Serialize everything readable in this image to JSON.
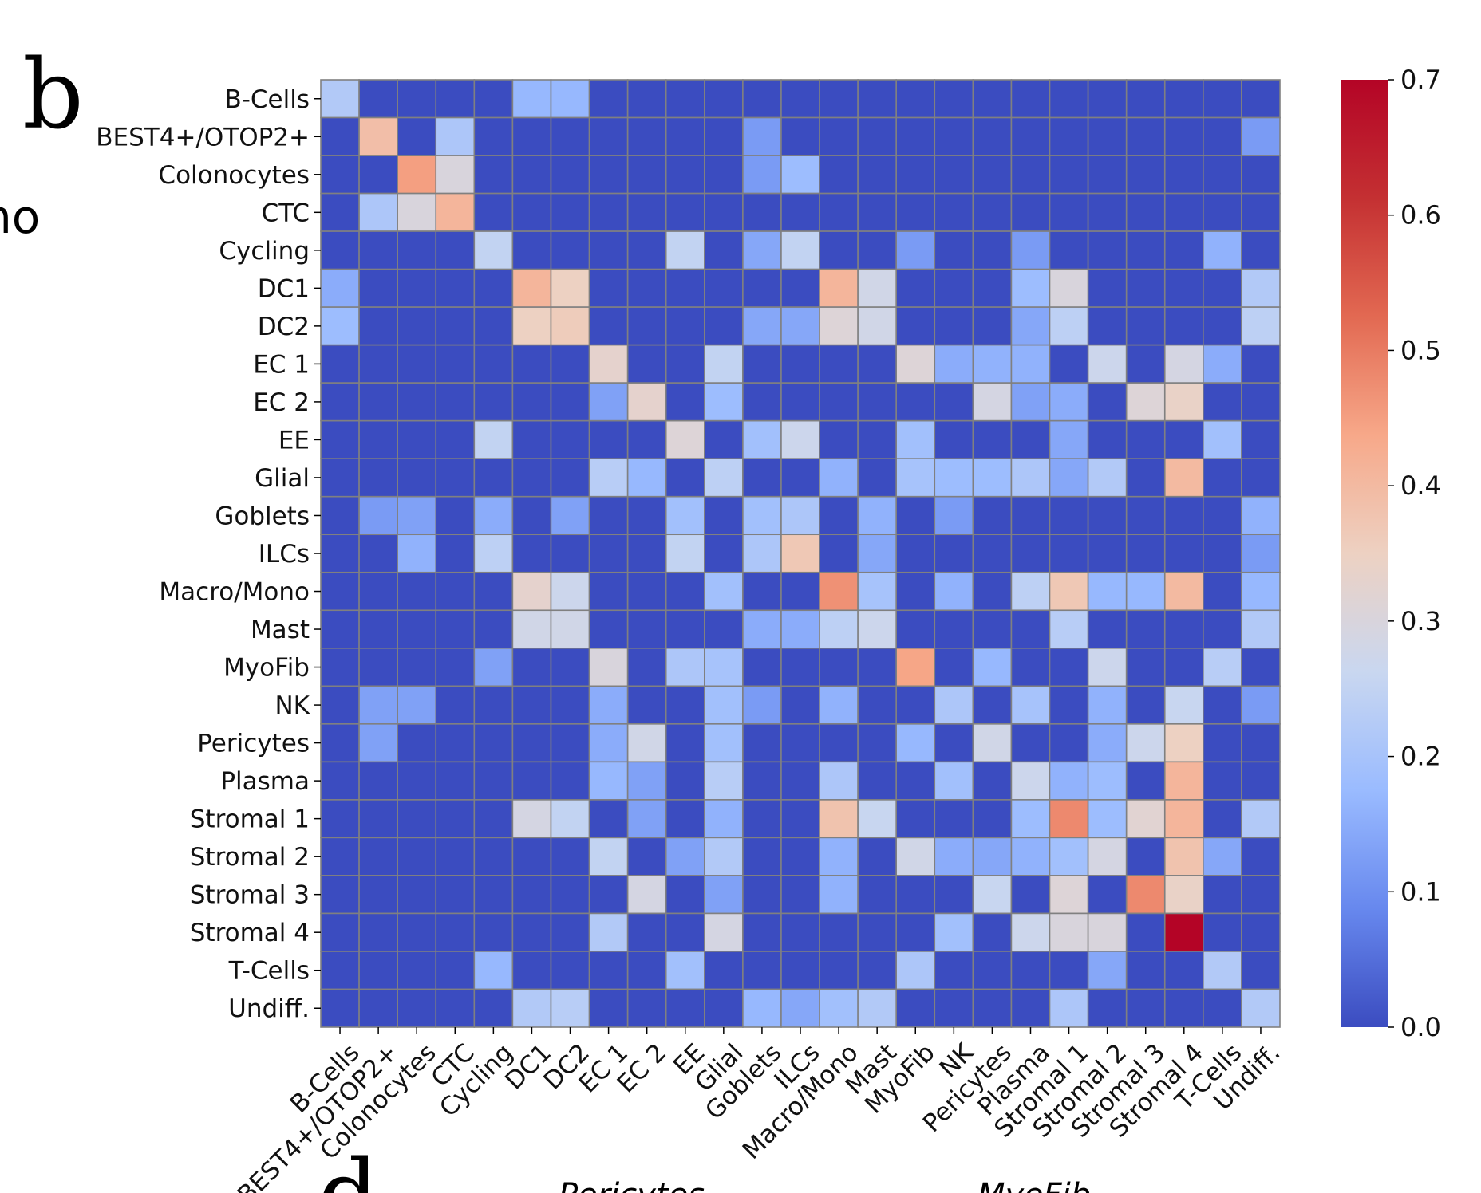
{
  "figure": {
    "panel_labels": [
      "b",
      "d"
    ],
    "partial_left_text": "no",
    "bottom_subplot_titles": [
      "Pericytes",
      "MyoFib"
    ]
  },
  "chart_data": {
    "type": "heatmap",
    "title": "",
    "xlabel": "",
    "ylabel": "",
    "rows": [
      "B-Cells",
      "BEST4+/OTOP2+",
      "Colonocytes",
      "CTC",
      "Cycling",
      "DC1",
      "DC2",
      "EC 1",
      "EC 2",
      "EE",
      "Glial",
      "Goblets",
      "ILCs",
      "Macro/Mono",
      "Mast",
      "MyoFib",
      "NK",
      "Pericytes",
      "Plasma",
      "Stromal 1",
      "Stromal 2",
      "Stromal 3",
      "Stromal 4",
      "T-Cells",
      "Undiff."
    ],
    "columns": [
      "B-Cells",
      "BEST4+/OTOP2+",
      "Colonocytes",
      "CTC",
      "Cycling",
      "DC1",
      "DC2",
      "EC 1",
      "EC 2",
      "EE",
      "Glial",
      "Goblets",
      "ILCs",
      "Macro/Mono",
      "Mast",
      "MyoFib",
      "NK",
      "Pericytes",
      "Plasma",
      "Stromal 1",
      "Stromal 2",
      "Stromal 3",
      "Stromal 4",
      "T-Cells",
      "Undiff."
    ],
    "values": [
      [
        0.22,
        0,
        0,
        0,
        0,
        0.17,
        0.17,
        0,
        0,
        0,
        0,
        0,
        0,
        0,
        0,
        0,
        0,
        0,
        0,
        0,
        0,
        0,
        0,
        0,
        0
      ],
      [
        0,
        0.39,
        0,
        0.21,
        0,
        0,
        0,
        0,
        0,
        0,
        0,
        0.12,
        0,
        0,
        0,
        0,
        0,
        0,
        0,
        0,
        0,
        0,
        0,
        0,
        0.12
      ],
      [
        0,
        0,
        0.45,
        0.3,
        0,
        0,
        0,
        0,
        0,
        0,
        0,
        0.12,
        0.18,
        0,
        0,
        0,
        0,
        0,
        0,
        0,
        0,
        0,
        0,
        0,
        0
      ],
      [
        0,
        0.21,
        0.3,
        0.41,
        0,
        0,
        0,
        0,
        0,
        0,
        0,
        0,
        0,
        0,
        0,
        0,
        0,
        0,
        0,
        0,
        0,
        0,
        0,
        0,
        0
      ],
      [
        0,
        0,
        0,
        0,
        0.25,
        0,
        0,
        0,
        0,
        0.25,
        0,
        0.14,
        0.25,
        0,
        0,
        0.12,
        0,
        0,
        0.12,
        0,
        0,
        0,
        0,
        0.16,
        0
      ],
      [
        0.15,
        0,
        0,
        0,
        0,
        0.41,
        0.35,
        0,
        0,
        0,
        0,
        0,
        0,
        0.41,
        0.28,
        0,
        0,
        0,
        0.18,
        0.3,
        0,
        0,
        0,
        0,
        0.22
      ],
      [
        0.18,
        0,
        0,
        0,
        0,
        0.35,
        0.36,
        0,
        0,
        0,
        0,
        0.14,
        0.14,
        0.31,
        0.28,
        0,
        0,
        0,
        0.14,
        0.24,
        0,
        0,
        0,
        0,
        0.24
      ],
      [
        0,
        0,
        0,
        0,
        0,
        0,
        0,
        0.33,
        0,
        0,
        0.25,
        0,
        0,
        0,
        0,
        0.31,
        0.15,
        0.16,
        0.16,
        0,
        0.27,
        0,
        0.29,
        0.15,
        0
      ],
      [
        0,
        0,
        0,
        0,
        0,
        0,
        0,
        0.13,
        0.33,
        0,
        0.18,
        0,
        0,
        0,
        0,
        0,
        0,
        0.29,
        0.13,
        0.15,
        0,
        0.31,
        0.34,
        0,
        0
      ],
      [
        0,
        0,
        0,
        0,
        0.25,
        0,
        0,
        0,
        0,
        0.31,
        0,
        0.19,
        0.27,
        0,
        0,
        0.19,
        0,
        0,
        0,
        0.14,
        0,
        0,
        0,
        0.19,
        0
      ],
      [
        0,
        0,
        0,
        0,
        0,
        0,
        0,
        0.23,
        0.17,
        0,
        0.24,
        0,
        0,
        0.16,
        0,
        0.2,
        0.18,
        0.18,
        0.21,
        0.14,
        0.22,
        0,
        0.4,
        0,
        0
      ],
      [
        0,
        0.12,
        0.13,
        0,
        0.15,
        0,
        0.13,
        0,
        0,
        0.19,
        0,
        0.19,
        0.21,
        0,
        0.16,
        0,
        0.12,
        0,
        0,
        0,
        0,
        0,
        0,
        0,
        0.16
      ],
      [
        0,
        0,
        0.16,
        0,
        0.24,
        0,
        0,
        0,
        0,
        0.25,
        0,
        0.21,
        0.37,
        0,
        0.14,
        0,
        0,
        0,
        0,
        0,
        0,
        0,
        0,
        0,
        0.12
      ],
      [
        0,
        0,
        0,
        0,
        0,
        0.33,
        0.27,
        0,
        0,
        0,
        0.19,
        0,
        0,
        0.47,
        0.2,
        0,
        0.16,
        0,
        0.24,
        0.37,
        0.17,
        0.17,
        0.4,
        0,
        0.17
      ],
      [
        0,
        0,
        0,
        0,
        0,
        0.28,
        0.28,
        0,
        0,
        0,
        0,
        0.15,
        0.15,
        0.24,
        0.27,
        0,
        0,
        0,
        0,
        0.23,
        0,
        0,
        0,
        0,
        0.22
      ],
      [
        0,
        0,
        0,
        0,
        0.13,
        0,
        0,
        0.3,
        0,
        0.21,
        0.2,
        0,
        0,
        0,
        0,
        0.44,
        0,
        0.17,
        0,
        0,
        0.27,
        0,
        0,
        0.23,
        0
      ],
      [
        0,
        0.13,
        0.13,
        0,
        0,
        0,
        0,
        0.15,
        0,
        0,
        0.19,
        0.12,
        0,
        0.16,
        0,
        0,
        0.21,
        0,
        0.2,
        0,
        0.16,
        0,
        0.26,
        0,
        0.12
      ],
      [
        0,
        0.13,
        0,
        0,
        0,
        0,
        0,
        0.15,
        0.28,
        0,
        0.19,
        0,
        0,
        0,
        0,
        0.17,
        0,
        0.28,
        0,
        0,
        0.15,
        0.27,
        0.35,
        0,
        0
      ],
      [
        0,
        0,
        0,
        0,
        0,
        0,
        0,
        0.17,
        0.13,
        0,
        0.23,
        0,
        0,
        0.21,
        0,
        0,
        0.19,
        0,
        0.27,
        0.16,
        0.18,
        0,
        0.41,
        0,
        0
      ],
      [
        0,
        0,
        0,
        0,
        0,
        0.29,
        0.25,
        0,
        0.13,
        0,
        0.16,
        0,
        0,
        0.38,
        0.26,
        0,
        0,
        0,
        0.18,
        0.48,
        0.18,
        0.32,
        0.41,
        0,
        0.22
      ],
      [
        0,
        0,
        0,
        0,
        0,
        0,
        0,
        0.25,
        0,
        0.13,
        0.22,
        0,
        0,
        0.16,
        0,
        0.28,
        0.15,
        0.14,
        0.16,
        0.19,
        0.29,
        0,
        0.38,
        0.14,
        0
      ],
      [
        0,
        0,
        0,
        0,
        0,
        0,
        0,
        0,
        0.29,
        0,
        0.13,
        0,
        0,
        0.16,
        0,
        0,
        0,
        0.26,
        0,
        0.31,
        0,
        0.48,
        0.34,
        0,
        0
      ],
      [
        0,
        0,
        0,
        0,
        0,
        0,
        0,
        0.22,
        0,
        0,
        0.29,
        0,
        0,
        0,
        0,
        0,
        0.19,
        0,
        0.27,
        0.3,
        0.3,
        0,
        0.7,
        0,
        0
      ],
      [
        0,
        0,
        0,
        0,
        0.17,
        0,
        0,
        0,
        0,
        0.19,
        0,
        0,
        0,
        0,
        0,
        0.21,
        0,
        0,
        0,
        0,
        0.14,
        0,
        0,
        0.22,
        0
      ],
      [
        0,
        0,
        0,
        0,
        0,
        0.22,
        0.23,
        0,
        0,
        0,
        0,
        0.17,
        0.14,
        0.19,
        0.22,
        0,
        0,
        0,
        0,
        0.21,
        0,
        0,
        0,
        0,
        0.22
      ]
    ],
    "colormap": "coolwarm",
    "vmin": 0.0,
    "vmax": 0.7,
    "colorbar": {
      "ticks": [
        0.0,
        0.1,
        0.2,
        0.3,
        0.4,
        0.5,
        0.6,
        0.7
      ],
      "tick_labels": [
        "0.0",
        "0.1",
        "0.2",
        "0.3",
        "0.4",
        "0.5",
        "0.6",
        "0.7"
      ],
      "placement": "right"
    },
    "colormap_stops": [
      {
        "v": 0.0,
        "color": "#3b4cc0"
      },
      {
        "v": 0.125,
        "color": "#6788ee"
      },
      {
        "v": 0.25,
        "color": "#9abbff"
      },
      {
        "v": 0.375,
        "color": "#c9d7f0"
      },
      {
        "v": 0.5,
        "color": "#edd1c2"
      },
      {
        "v": 0.625,
        "color": "#f7a889"
      },
      {
        "v": 0.75,
        "color": "#e26952"
      },
      {
        "v": 0.875,
        "color": "#c43032"
      },
      {
        "v": 1.0,
        "color": "#b40426"
      }
    ],
    "grid": true,
    "grid_color": "#808080",
    "x_tick_rotation_deg": 45
  }
}
